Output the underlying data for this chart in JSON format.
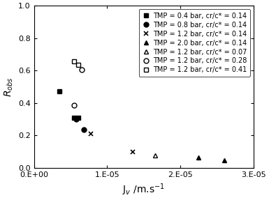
{
  "series": [
    {
      "label": "TMP = 0.4 bar, cr/c* = 0.14",
      "marker": "s",
      "fillstyle": "full",
      "color": "black",
      "x": [
        3.5e-06,
        5.5e-06,
        6e-06
      ],
      "y": [
        0.47,
        0.31,
        0.31
      ]
    },
    {
      "label": "TMP = 0.8 bar, cr/c* = 0.14",
      "marker": "o",
      "fillstyle": "full",
      "color": "black",
      "x": [
        5.8e-06,
        6.8e-06
      ],
      "y": [
        0.3,
        0.235
      ]
    },
    {
      "label": "TMP = 1.2 bar, cr/c* = 0.14",
      "marker": "x",
      "fillstyle": "full",
      "color": "black",
      "x": [
        7.8e-06,
        1.35e-05
      ],
      "y": [
        0.21,
        0.1
      ]
    },
    {
      "label": "TMP = 2.0 bar, cr/c* = 0.14",
      "marker": "^",
      "fillstyle": "full",
      "color": "black",
      "x": [
        2.25e-05,
        2.6e-05
      ],
      "y": [
        0.065,
        0.048
      ]
    },
    {
      "label": "TMP = 1.2 bar, cr/c* = 0.07",
      "marker": "^",
      "fillstyle": "none",
      "color": "black",
      "x": [
        1.65e-05
      ],
      "y": [
        0.075
      ]
    },
    {
      "label": "TMP = 1.2 bar, cr/c* = 0.28",
      "marker": "o",
      "fillstyle": "none",
      "color": "black",
      "x": [
        5.5e-06,
        6.5e-06
      ],
      "y": [
        0.385,
        0.605
      ]
    },
    {
      "label": "TMP = 1.2 bar, cr/c* = 0.41",
      "marker": "s",
      "fillstyle": "none",
      "color": "black",
      "x": [
        5.5e-06,
        6e-06
      ],
      "y": [
        0.655,
        0.635
      ]
    }
  ],
  "xlabel": "J$_v$ /m.s$^{-1}$",
  "ylabel": "$R_{obs}$",
  "xlim": [
    0,
    3e-05
  ],
  "ylim": [
    0,
    1.0
  ],
  "yticks": [
    0,
    0.2,
    0.4,
    0.6,
    0.8,
    1.0
  ],
  "xtick_labels": [
    "0.E+00",
    "1.E-05",
    "2.E-05",
    "3.E-05"
  ],
  "xtick_pos": [
    0,
    1e-05,
    2e-05,
    3e-05
  ],
  "figsize": [
    3.85,
    2.87
  ],
  "dpi": 100,
  "markersize": 5,
  "legend_fontsize": 7.0,
  "axis_fontsize": 10,
  "tick_fontsize": 8
}
